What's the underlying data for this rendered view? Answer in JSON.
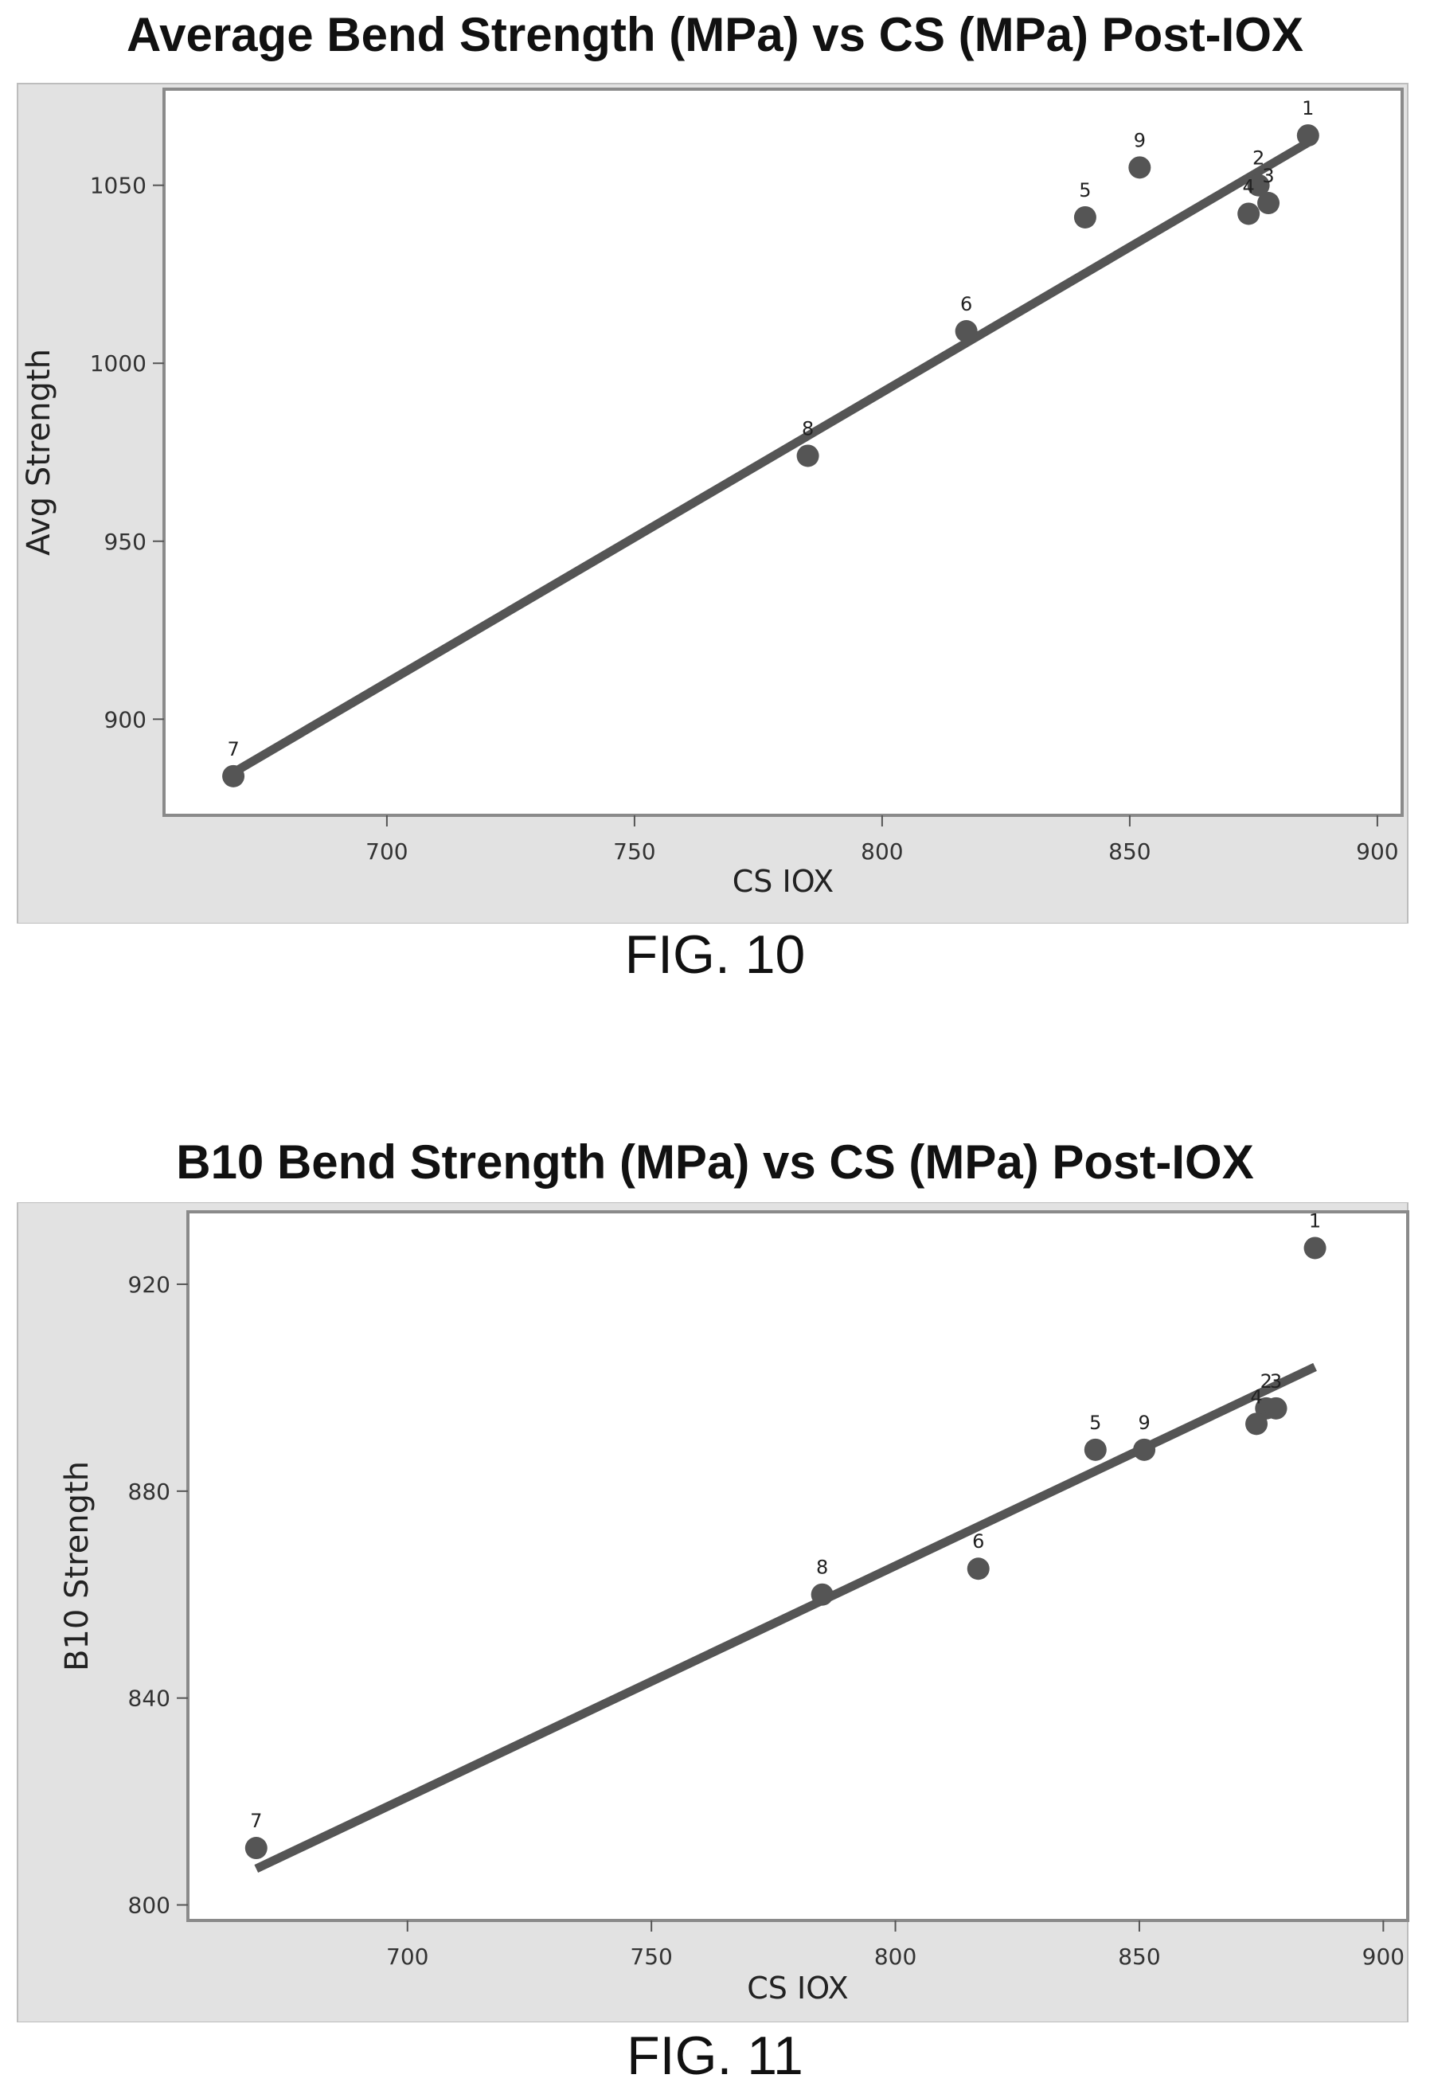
{
  "chart_data": [
    {
      "type": "scatter",
      "title": "Average Bend Strength (MPa) vs CS (MPa) Post-IOX",
      "caption": "FIG. 10",
      "xlabel": "CS IOX",
      "ylabel": "Avg Strength",
      "xlim": [
        655,
        905
      ],
      "ylim": [
        873,
        1077
      ],
      "xticks": [
        700,
        750,
        800,
        850,
        900
      ],
      "yticks": [
        900,
        950,
        1000,
        1050
      ],
      "grid": false,
      "points": [
        {
          "label": "1",
          "x": 886,
          "y": 1064
        },
        {
          "label": "2",
          "x": 876,
          "y": 1050
        },
        {
          "label": "3",
          "x": 878,
          "y": 1045
        },
        {
          "label": "4",
          "x": 874,
          "y": 1042
        },
        {
          "label": "5",
          "x": 841,
          "y": 1041
        },
        {
          "label": "6",
          "x": 817,
          "y": 1009
        },
        {
          "label": "7",
          "x": 669,
          "y": 884
        },
        {
          "label": "8",
          "x": 785,
          "y": 974
        },
        {
          "label": "9",
          "x": 852,
          "y": 1055
        }
      ],
      "fit_line": {
        "x": [
          669,
          886
        ],
        "y": [
          885,
          1062
        ]
      },
      "colors": {
        "marker": "#555555",
        "line": "#555555",
        "frame_bg": "#e2e2e2",
        "plot_bg": "#ffffff"
      }
    },
    {
      "type": "scatter",
      "title": "B10 Bend Strength (MPa) vs CS (MPa) Post-IOX",
      "caption": "FIG. 11",
      "xlabel": "CS IOX",
      "ylabel": "B10 Strength",
      "xlim": [
        655,
        905
      ],
      "ylim": [
        797,
        934
      ],
      "xticks": [
        700,
        750,
        800,
        850,
        900
      ],
      "yticks": [
        800,
        840,
        880,
        920
      ],
      "grid": false,
      "points": [
        {
          "label": "1",
          "x": 886,
          "y": 927
        },
        {
          "label": "2",
          "x": 876,
          "y": 896
        },
        {
          "label": "3",
          "x": 878,
          "y": 896
        },
        {
          "label": "4",
          "x": 874,
          "y": 893
        },
        {
          "label": "5",
          "x": 841,
          "y": 888
        },
        {
          "label": "6",
          "x": 817,
          "y": 865
        },
        {
          "label": "7",
          "x": 669,
          "y": 811
        },
        {
          "label": "8",
          "x": 785,
          "y": 860
        },
        {
          "label": "9",
          "x": 851,
          "y": 888
        }
      ],
      "fit_line": {
        "x": [
          669,
          886
        ],
        "y": [
          807,
          904
        ]
      },
      "colors": {
        "marker": "#555555",
        "line": "#555555",
        "frame_bg": "#e2e2e2",
        "plot_bg": "#ffffff"
      }
    }
  ]
}
